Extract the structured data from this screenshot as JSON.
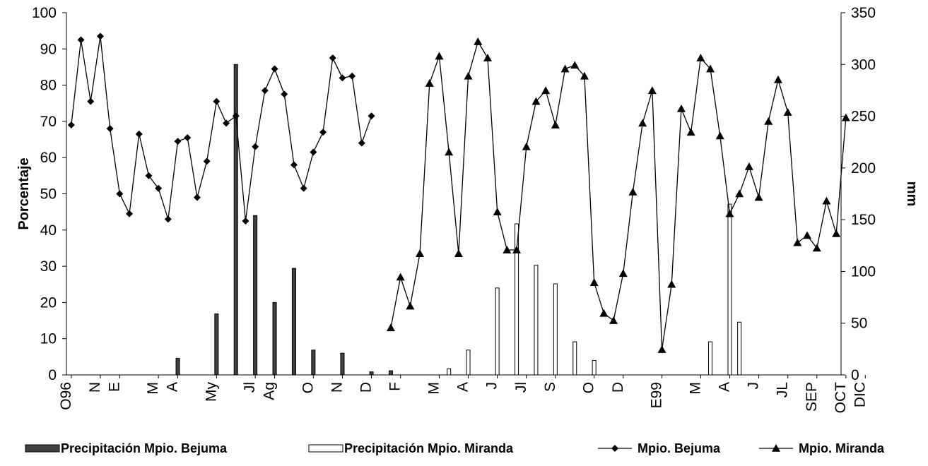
{
  "chart_data": {
    "type": "bar+line",
    "ylabel": "Porcentaje",
    "y2label": "mm",
    "ylim": [
      0,
      100
    ],
    "y2lim": [
      0,
      350
    ],
    "yticks": [
      0,
      10,
      20,
      30,
      40,
      50,
      60,
      70,
      80,
      90,
      100
    ],
    "y2ticks": [
      0,
      50,
      100,
      150,
      200,
      250,
      300,
      350
    ],
    "n_slots": 81,
    "x_tick_labels": [
      {
        "slot": 0,
        "label": "O96"
      },
      {
        "slot": 3,
        "label": "N"
      },
      {
        "slot": 5,
        "label": "E"
      },
      {
        "slot": 9,
        "label": "M"
      },
      {
        "slot": 11,
        "label": "A"
      },
      {
        "slot": 15,
        "label": "My"
      },
      {
        "slot": 19,
        "label": "Jl"
      },
      {
        "slot": 21,
        "label": "Ag"
      },
      {
        "slot": 25,
        "label": "O"
      },
      {
        "slot": 28,
        "label": "N"
      },
      {
        "slot": 31,
        "label": "D"
      },
      {
        "slot": 34,
        "label": "F"
      },
      {
        "slot": 38,
        "label": "M"
      },
      {
        "slot": 41,
        "label": "A"
      },
      {
        "slot": 44,
        "label": "J"
      },
      {
        "slot": 47,
        "label": "Jl"
      },
      {
        "slot": 50,
        "label": "S"
      },
      {
        "slot": 54,
        "label": "O"
      },
      {
        "slot": 57,
        "label": "D"
      },
      {
        "slot": 61,
        "label": "E99"
      },
      {
        "slot": 65,
        "label": "M"
      },
      {
        "slot": 68,
        "label": "A"
      },
      {
        "slot": 71,
        "label": "J"
      },
      {
        "slot": 74,
        "label": "JL"
      },
      {
        "slot": 77,
        "label": "SEP"
      },
      {
        "slot": 80,
        "label": "OCT"
      },
      {
        "slot": 82,
        "label": "DIC"
      }
    ],
    "series": [
      {
        "name": "Precipitación Mpio. Bejuma",
        "kind": "bar",
        "axis": "y2",
        "color": "#404040",
        "points": [
          {
            "slot": 11,
            "value": 16
          },
          {
            "slot": 15,
            "value": 59
          },
          {
            "slot": 17,
            "value": 300
          },
          {
            "slot": 19,
            "value": 154
          },
          {
            "slot": 21,
            "value": 70
          },
          {
            "slot": 23,
            "value": 103
          },
          {
            "slot": 25,
            "value": 24
          },
          {
            "slot": 28,
            "value": 21
          },
          {
            "slot": 31,
            "value": 3
          },
          {
            "slot": 33,
            "value": 4
          }
        ]
      },
      {
        "name": "Precipitación Mpio. Miranda",
        "kind": "bar",
        "axis": "y2",
        "color": "#ffffff",
        "points": [
          {
            "slot": 39,
            "value": 6
          },
          {
            "slot": 41,
            "value": 24
          },
          {
            "slot": 44,
            "value": 84
          },
          {
            "slot": 46,
            "value": 146
          },
          {
            "slot": 48,
            "value": 106
          },
          {
            "slot": 50,
            "value": 88
          },
          {
            "slot": 52,
            "value": 32
          },
          {
            "slot": 54,
            "value": 14
          },
          {
            "slot": 66,
            "value": 32
          },
          {
            "slot": 68,
            "value": 165
          },
          {
            "slot": 69,
            "value": 51
          }
        ]
      },
      {
        "name": "Mpio. Bejuma",
        "kind": "line",
        "axis": "y",
        "marker": "diamond",
        "start_slot": 0,
        "values": [
          69,
          92.5,
          75.5,
          93.5,
          68,
          50,
          44.5,
          66.5,
          55,
          51.5,
          43,
          64.5,
          65.5,
          49,
          59,
          75.5,
          69.5,
          71.5,
          42.5,
          63,
          78.5,
          84.5,
          77.5,
          58,
          51.5,
          61.5,
          67,
          87.5,
          82,
          82.5,
          64,
          71.5
        ]
      },
      {
        "name": "Mpio. Miranda",
        "kind": "line",
        "axis": "y",
        "marker": "triangle",
        "start_slot": 33,
        "values": [
          13,
          27,
          19,
          33.5,
          80.5,
          88,
          61.5,
          33.5,
          82.5,
          92,
          87.5,
          45,
          34.5,
          34.5,
          63,
          75.5,
          78.5,
          69,
          84.5,
          85.5,
          82.5,
          25.5,
          17,
          15,
          28,
          50.5,
          69.5,
          78.5,
          7,
          25,
          73.5,
          67,
          87.5,
          84.5,
          66,
          44.5,
          50,
          57.5,
          49,
          70,
          81.5,
          72.5,
          36.5,
          38.5,
          35,
          48,
          39,
          71
        ]
      }
    ],
    "legend": {
      "position": "bottom",
      "items": [
        "Precipitación Mpio. Bejuma",
        "Precipitación Mpio. Miranda",
        "Mpio. Bejuma",
        "Mpio. Miranda"
      ]
    }
  }
}
